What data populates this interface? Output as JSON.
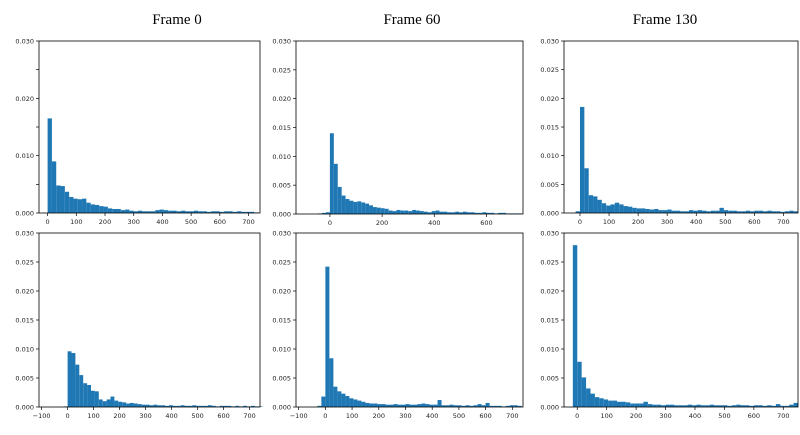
{
  "figure": {
    "frame_titles": [
      "Frame 0",
      "Frame 60",
      "Frame 130"
    ]
  },
  "style": {
    "bar_color": "#1f77b4",
    "axis_color": "#000000"
  },
  "chart_data": [
    {
      "type": "bar",
      "title": "",
      "xlabel": "",
      "ylabel": "",
      "xlim": [
        -30,
        740
      ],
      "ylim": [
        0,
        0.03
      ],
      "xticks": [
        0,
        100,
        200,
        300,
        400,
        500,
        600,
        700
      ],
      "yticks": [
        0.0,
        0.005,
        0.01,
        0.015,
        0.02,
        0.025,
        0.03
      ],
      "yticklabels": [
        "0.000",
        "",
        "0.010",
        "",
        "0.020",
        "",
        "0.030"
      ],
      "bin_start": 0,
      "bin_width": 15,
      "values": [
        0.0165,
        0.009,
        0.0048,
        0.0047,
        0.0037,
        0.0028,
        0.0025,
        0.0024,
        0.0025,
        0.0018,
        0.0015,
        0.0014,
        0.0012,
        0.0011,
        0.0008,
        0.0007,
        0.0007,
        0.0005,
        0.0006,
        0.0004,
        0.0003,
        0.0004,
        0.0003,
        0.0003,
        0.0003,
        0.0005,
        0.0006,
        0.0005,
        0.0004,
        0.0004,
        0.0003,
        0.0004,
        0.0003,
        0.0003,
        0.0004,
        0.0003,
        0.0003,
        0.0002,
        0.0003,
        0.0003,
        0.0002,
        0.0003,
        0.0003,
        0.0002,
        0.0003,
        0.0002,
        0.0002,
        0.0002,
        0.0001
      ]
    },
    {
      "type": "bar",
      "title": "",
      "xlabel": "",
      "ylabel": "",
      "xlim": [
        -130,
        740
      ],
      "ylim": [
        0,
        0.03
      ],
      "xticks": [
        0,
        200,
        400,
        600
      ],
      "yticks": [
        0.0,
        0.005,
        0.01,
        0.015,
        0.02,
        0.025,
        0.03
      ],
      "yticklabels": [
        "0.000",
        "0.005",
        "0.010",
        "0.015",
        "0.020",
        "0.025",
        "0.030"
      ],
      "bin_start": -45,
      "bin_width": 15,
      "values": [
        0.0001,
        0.0002,
        0.0003,
        0.014,
        0.0087,
        0.0047,
        0.0032,
        0.0026,
        0.0023,
        0.0021,
        0.0022,
        0.002,
        0.0018,
        0.0015,
        0.0012,
        0.0011,
        0.001,
        0.0009,
        0.0006,
        0.0005,
        0.0007,
        0.0006,
        0.0006,
        0.0005,
        0.0007,
        0.0006,
        0.0005,
        0.0004,
        0.0003,
        0.0005,
        0.0006,
        0.0004,
        0.0004,
        0.0003,
        0.0003,
        0.0004,
        0.0003,
        0.0004,
        0.0003,
        0.0003,
        0.0002,
        0.0002,
        0.0003,
        0.0002,
        0.0002,
        0.0001,
        0.0002,
        0.0002,
        0.0001,
        0.0001,
        0.0001,
        0.0001
      ]
    },
    {
      "type": "bar",
      "title": "",
      "xlabel": "",
      "ylabel": "",
      "xlim": [
        -55,
        750
      ],
      "ylim": [
        0,
        0.03
      ],
      "xticks": [
        0,
        100,
        200,
        300,
        400,
        500,
        600,
        700
      ],
      "yticks": [
        0.0,
        0.005,
        0.01,
        0.015,
        0.02,
        0.025,
        0.03
      ],
      "yticklabels": [
        "0.000",
        "0.005",
        "0.010",
        "0.015",
        "0.020",
        "0.025",
        "0.030"
      ],
      "bin_start": -15,
      "bin_width": 15,
      "values": [
        0.0003,
        0.0185,
        0.0078,
        0.0031,
        0.0029,
        0.0023,
        0.0017,
        0.0013,
        0.0015,
        0.0018,
        0.0015,
        0.0012,
        0.0011,
        0.0009,
        0.0008,
        0.0008,
        0.0007,
        0.0006,
        0.0007,
        0.0005,
        0.0005,
        0.0006,
        0.0004,
        0.0004,
        0.0003,
        0.0003,
        0.0005,
        0.0004,
        0.0005,
        0.0004,
        0.0003,
        0.0004,
        0.0004,
        0.0009,
        0.0005,
        0.0004,
        0.0004,
        0.0003,
        0.0003,
        0.0004,
        0.0003,
        0.0004,
        0.0004,
        0.0003,
        0.0004,
        0.0003,
        0.0003,
        0.0002,
        0.0003,
        0.0004,
        0.0003
      ]
    },
    {
      "type": "bar",
      "title": "",
      "xlabel": "",
      "ylabel": "",
      "xlim": [
        -110,
        740
      ],
      "ylim": [
        0,
        0.03
      ],
      "xticks": [
        -100,
        0,
        100,
        200,
        300,
        400,
        500,
        600,
        700
      ],
      "yticks": [
        0.0,
        0.005,
        0.01,
        0.015,
        0.02,
        0.025,
        0.03
      ],
      "yticklabels": [
        "0.000",
        "0.005",
        "0.010",
        "0.015",
        "0.020",
        "0.025",
        "0.030"
      ],
      "bin_start": -15,
      "bin_width": 15,
      "values": [
        0.0001,
        0.0096,
        0.0093,
        0.0073,
        0.0055,
        0.0041,
        0.0038,
        0.0028,
        0.0027,
        0.0013,
        0.001,
        0.0013,
        0.0018,
        0.0011,
        0.0009,
        0.0008,
        0.0006,
        0.0007,
        0.0006,
        0.0005,
        0.0004,
        0.0004,
        0.0003,
        0.0004,
        0.0003,
        0.0003,
        0.0002,
        0.0003,
        0.0002,
        0.0002,
        0.0003,
        0.0002,
        0.0002,
        0.0003,
        0.0002,
        0.0002,
        0.0002,
        0.0003,
        0.0002,
        0.0001,
        0.0002,
        0.0002,
        0.0002,
        0.0001,
        0.0002,
        0.0001,
        0.0002,
        0.0001,
        0.0002,
        0.0001,
        0.0001
      ]
    },
    {
      "type": "bar",
      "title": "",
      "xlabel": "",
      "ylabel": "",
      "xlim": [
        -110,
        740
      ],
      "ylim": [
        0,
        0.03
      ],
      "xticks": [
        -100,
        0,
        100,
        200,
        300,
        400,
        500,
        600,
        700
      ],
      "yticks": [
        0.0,
        0.005,
        0.01,
        0.015,
        0.02,
        0.025,
        0.03
      ],
      "yticklabels": [
        "0.000",
        "0.005",
        "0.010",
        "0.015",
        "0.020",
        "0.025",
        "0.030"
      ],
      "bin_start": -30,
      "bin_width": 15,
      "values": [
        0.0002,
        0.0018,
        0.0242,
        0.0084,
        0.0035,
        0.0027,
        0.0023,
        0.0019,
        0.0015,
        0.0013,
        0.0011,
        0.0009,
        0.0007,
        0.0006,
        0.0006,
        0.0005,
        0.0005,
        0.0004,
        0.0004,
        0.0005,
        0.0004,
        0.0004,
        0.0005,
        0.0004,
        0.0004,
        0.0005,
        0.0006,
        0.0005,
        0.0004,
        0.0004,
        0.0012,
        0.0003,
        0.0003,
        0.0004,
        0.0003,
        0.0003,
        0.0002,
        0.0003,
        0.0002,
        0.0003,
        0.0005,
        0.0003,
        0.0007,
        0.0002,
        0.0002,
        0.0002,
        0.0001,
        0.0002,
        0.0003,
        0.0003,
        0.0002
      ]
    },
    {
      "type": "bar",
      "title": "",
      "xlabel": "",
      "ylabel": "",
      "xlim": [
        -45,
        750
      ],
      "ylim": [
        0,
        0.03
      ],
      "xticks": [
        0,
        100,
        200,
        300,
        400,
        500,
        600,
        700
      ],
      "yticks": [
        0.0,
        0.005,
        0.01,
        0.015,
        0.02,
        0.025,
        0.03
      ],
      "yticklabels": [
        "0.000",
        "0.005",
        "0.010",
        "0.015",
        "0.020",
        "0.025",
        "0.030"
      ],
      "bin_start": -15,
      "bin_width": 15,
      "values": [
        0.0279,
        0.0078,
        0.0051,
        0.0032,
        0.0023,
        0.0017,
        0.0015,
        0.0013,
        0.0011,
        0.0011,
        0.0009,
        0.0009,
        0.0008,
        0.0006,
        0.0006,
        0.0006,
        0.0009,
        0.0005,
        0.0004,
        0.0004,
        0.0003,
        0.0004,
        0.0004,
        0.0003,
        0.0003,
        0.0003,
        0.0004,
        0.0003,
        0.0004,
        0.0003,
        0.0003,
        0.0004,
        0.0003,
        0.0003,
        0.0003,
        0.0002,
        0.0003,
        0.0004,
        0.0003,
        0.0003,
        0.0002,
        0.0003,
        0.0003,
        0.0002,
        0.0003,
        0.0002,
        0.0005,
        0.0002,
        0.0002,
        0.0004,
        0.0007
      ]
    }
  ]
}
